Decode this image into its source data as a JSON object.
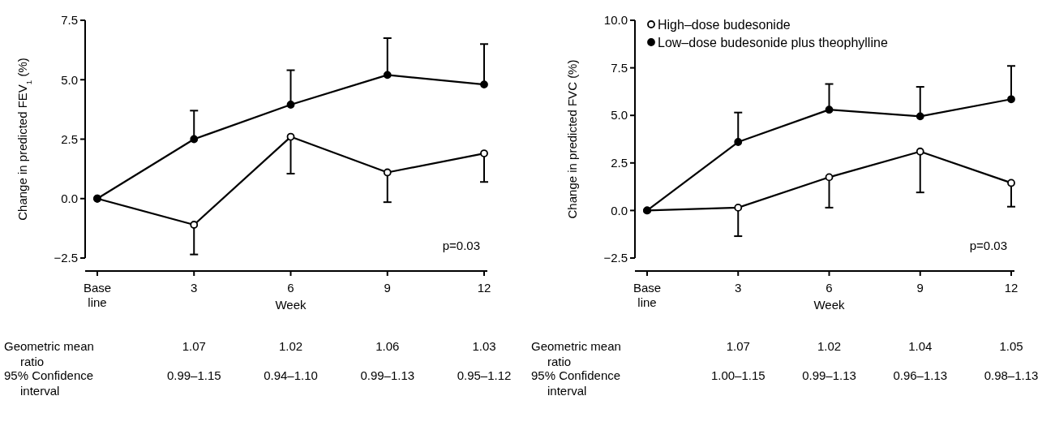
{
  "chart_data": [
    {
      "type": "line",
      "ylabel": "Change in predicted FEV$_{1}$ (%)",
      "xlabel": "Week",
      "categories": [
        "Base line",
        "3",
        "6",
        "9",
        "12"
      ],
      "ylim": [
        -2.5,
        7.5
      ],
      "yticks": [
        {
          "value": -2.5,
          "label": "−2.5"
        },
        {
          "value": 0,
          "label": "0.0"
        },
        {
          "value": 2.5,
          "label": "2.5"
        },
        {
          "value": 5,
          "label": "5.0"
        },
        {
          "value": 7.5,
          "label": "7.5"
        }
      ],
      "marker": "circle",
      "legend": false,
      "series": [
        {
          "color": "#000000",
          "colors": [
            "#ffffff",
            "#ffffff",
            "#ffffff",
            "#ffffff",
            "#ffffff"
          ],
          "values": [
            0,
            -1.1,
            2.6,
            1.1,
            1.9
          ],
          "errors": [
            null,
            [
              -2.35,
              -1.1
            ],
            [
              1.05,
              2.6
            ],
            [
              -0.15,
              1.1
            ],
            [
              0.7,
              1.9
            ]
          ]
        },
        {
          "color": "#000000",
          "values": [
            0,
            2.5,
            3.95,
            5.2,
            4.8
          ],
          "errors": [
            null,
            [
              2.5,
              3.7
            ],
            [
              3.95,
              5.4
            ],
            [
              5.2,
              6.75
            ],
            [
              4.8,
              6.5
            ]
          ]
        }
      ],
      "annotations": [
        "p=0.03",
        "Geometric mean ratio",
        "1.07",
        "1.02",
        "1.06",
        "1.03",
        "95% Confidence interval",
        "0.99–1.15",
        "0.94–1.10",
        "0.99–1.13",
        "0.95–1.12"
      ]
    },
    {
      "type": "line",
      "ylabel": "Change in predicted FVC (%)",
      "xlabel": "Week",
      "categories": [
        "Base line",
        "3",
        "6",
        "9",
        "12"
      ],
      "ylim": [
        -2.5,
        10
      ],
      "yticks": [
        {
          "value": -2.5,
          "label": "−2.5"
        },
        {
          "value": 0,
          "label": "0.0"
        },
        {
          "value": 2.5,
          "label": "2.5"
        },
        {
          "value": 5,
          "label": "5.0"
        },
        {
          "value": 7.5,
          "label": "7.5"
        },
        {
          "value": 10,
          "label": "10.0"
        }
      ],
      "marker": "circle",
      "legend": "top left",
      "series": [
        {
          "name": "High–dose budesonide",
          "color": "#000000",
          "colors": [
            "#ffffff",
            "#ffffff",
            "#ffffff",
            "#ffffff",
            "#ffffff"
          ],
          "values": [
            0,
            0.15,
            1.75,
            3.1,
            1.45
          ],
          "errors": [
            null,
            [
              -1.35,
              0.15
            ],
            [
              0.15,
              1.75
            ],
            [
              0.95,
              3.1
            ],
            [
              0.2,
              1.45
            ]
          ]
        },
        {
          "name": "Low–dose budesonide plus theophylline",
          "color": "#000000",
          "values": [
            0,
            3.6,
            5.3,
            4.95,
            5.85
          ],
          "errors": [
            null,
            [
              3.6,
              5.15
            ],
            [
              5.3,
              6.65
            ],
            [
              4.95,
              6.5
            ],
            [
              5.85,
              7.6
            ]
          ]
        }
      ],
      "annotations": [
        "p=0.03",
        "Geometric mean ratio",
        "1.07",
        "1.02",
        "1.04",
        "1.05",
        "95% Confidence interval",
        "1.00–1.15",
        "0.99–1.13",
        "0.96–1.13",
        "0.98–1.13"
      ]
    }
  ]
}
